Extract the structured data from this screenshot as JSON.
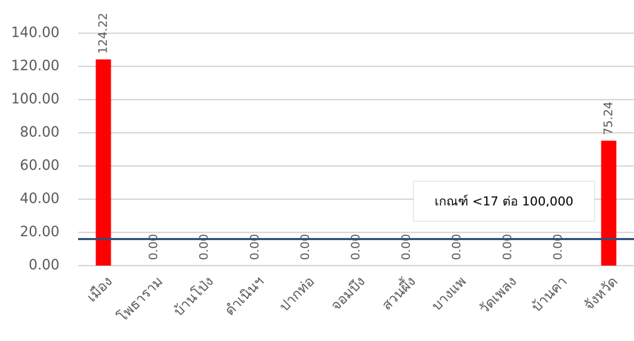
{
  "chart_data": {
    "type": "bar",
    "categories": [
      "เมือง",
      "โพธาราม",
      "บ้านโป่ง",
      "ดำเนินฯ",
      "ปากท่อ",
      "จอมบึง",
      "สวนผึ้ง",
      "บางแพ",
      "วัดเพลง",
      "บ้านคา",
      "จังหวัด"
    ],
    "values": [
      124.22,
      0,
      0,
      0,
      0,
      0,
      0,
      0,
      0,
      0,
      75.24
    ],
    "value_labels": [
      "124.22",
      "0.00",
      "0.00",
      "0.00",
      "0.00",
      "0.00",
      "0.00",
      "0.00",
      "0.00",
      "0.00",
      "75.24"
    ],
    "color": "#ff0000",
    "ylim": [
      0,
      140
    ],
    "yticks": [
      {
        "value": 0,
        "label": "0.00"
      },
      {
        "value": 20,
        "label": "20.00"
      },
      {
        "value": 40,
        "label": "40.00"
      },
      {
        "value": 60,
        "label": "60.00"
      },
      {
        "value": 80,
        "label": "80.00"
      },
      {
        "value": 100,
        "label": "100.00"
      },
      {
        "value": 120,
        "label": "120.00"
      },
      {
        "value": 140,
        "label": "140.00"
      }
    ],
    "grid": true,
    "reference_line": {
      "value": 16,
      "label": "เกณฑ์ <17 ต่อ 100,000",
      "color": "#2e4e7e"
    }
  }
}
